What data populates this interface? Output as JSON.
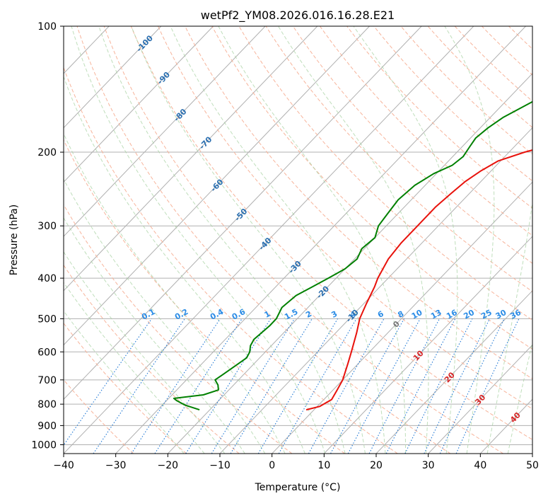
{
  "chart_data": {
    "type": "line",
    "subtype": "skew-t log-p diagram",
    "title": "wetPf2_YM08.2026.016.16.28.E21",
    "xlabel": "Temperature (°C)",
    "ylabel": "Pressure (hPa)",
    "xlim": [
      -40,
      50
    ],
    "ylim": [
      1050,
      100
    ],
    "y_scale": "log",
    "x_ticks": [
      -40,
      -30,
      -20,
      -10,
      0,
      10,
      20,
      30,
      40,
      50
    ],
    "y_ticks": [
      100,
      200,
      300,
      400,
      500,
      600,
      700,
      800,
      900,
      1000
    ],
    "grid": true,
    "series": [
      {
        "color": "#e8120c",
        "pressure": [
          825,
          810,
          780,
          740,
          700,
          640,
          600,
          540,
          500,
          460,
          420,
          400,
          360,
          330,
          300,
          270,
          250,
          235,
          222,
          210,
          200,
          190,
          175,
          160,
          150,
          140,
          130,
          120,
          110,
          100
        ],
        "temperature": [
          -1.5,
          0.5,
          1.5,
          0.8,
          0.0,
          -2.0,
          -3.5,
          -6.0,
          -8.0,
          -9.5,
          -11.0,
          -12.0,
          -13.5,
          -14.0,
          -14.0,
          -14.0,
          -13.5,
          -13.0,
          -12.0,
          -10.5,
          -7.0,
          -2.0,
          2.0,
          4.0,
          8.0,
          13.0,
          17.0,
          21.0,
          23.0,
          24.5
        ]
      },
      {
        "color": "#008000",
        "pressure": [
          825,
          805,
          785,
          775,
          760,
          740,
          720,
          700,
          680,
          640,
          620,
          600,
          580,
          560,
          520,
          500,
          470,
          440,
          420,
          400,
          380,
          360,
          340,
          320,
          300,
          280,
          260,
          240,
          225,
          215,
          205,
          195,
          185,
          175,
          165,
          150,
          140,
          130,
          120,
          110,
          100
        ],
        "dewpoint": [
          -22.0,
          -25.5,
          -28.0,
          -29.0,
          -24.0,
          -22.0,
          -23.0,
          -24.5,
          -24.0,
          -23.0,
          -22.5,
          -23.0,
          -24.0,
          -24.5,
          -24.0,
          -24.0,
          -25.0,
          -24.5,
          -23.0,
          -21.5,
          -20.0,
          -19.5,
          -20.5,
          -20.0,
          -21.5,
          -22.0,
          -22.5,
          -22.0,
          -20.5,
          -18.5,
          -18.0,
          -18.5,
          -19.0,
          -18.5,
          -17.5,
          -14.5,
          -11.0,
          -9.5,
          -8.5,
          -8.0,
          -6.5
        ]
      }
    ],
    "dry_adiabat_labels": [
      "-100",
      "-90",
      "-80",
      "-70",
      "-60",
      "-50",
      "-40",
      "-30",
      "-20",
      "-10",
      "0",
      "10",
      "20",
      "30",
      "40"
    ],
    "mixing_ratio_labels": [
      "0.1",
      "0.2",
      "0.4",
      "0.6",
      "1",
      "1.5",
      "2",
      "3",
      "4",
      "6",
      "8",
      "10",
      "13",
      "16",
      "20",
      "25",
      "30",
      "36"
    ]
  }
}
